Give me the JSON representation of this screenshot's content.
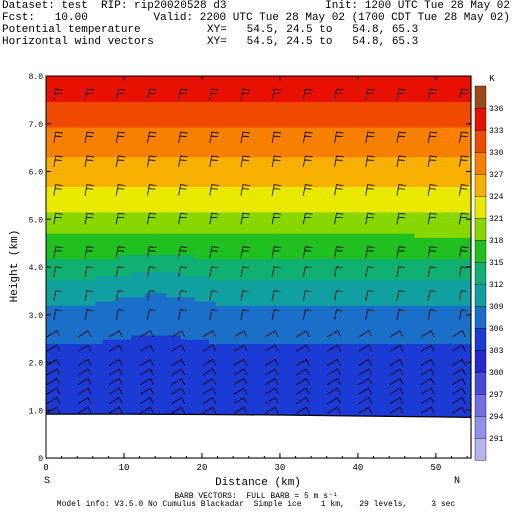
{
  "header": {
    "dataset": "Dataset: test  RIP: rip20020528 d3",
    "init": "Init: 1200 UTC Tue 28 May 02",
    "fcst": "Fcst:   10.00",
    "valid": "Valid: 2200 UTC Tue 28 May 02 (1700 CDT Tue 28 May 02)",
    "field1": "Potential temperature",
    "xy1": "XY=   54.5, 24.5 to   54.8, 65.3",
    "field2": "Horizontal wind vectors",
    "xy2": "XY=   54.5, 24.5 to   54.8, 65.3"
  },
  "footer": {
    "line1": "BARB VECTORS:  FULL BARB = 5 m s⁻¹",
    "line2": "Model info: V3.5.0 No Cumulus Blackadar  Simple ice    1 km,   29 levels,     3 sec"
  },
  "colors": {
    "ground": "#ffffff",
    "frame": "#000000",
    "barb": "#000000"
  },
  "chart_data": {
    "type": "heatmap",
    "title": "",
    "xlabel": "Distance (km)",
    "ylabel": "Height (km)",
    "xlim": [
      0,
      54.5
    ],
    "ylim": [
      0,
      8.0
    ],
    "x_ticks": [
      "0",
      "10",
      "20",
      "30",
      "40",
      "50"
    ],
    "x_tick_values": [
      0,
      10,
      20,
      30,
      40,
      50
    ],
    "y_ticks": [
      "0",
      "1.0",
      "2.0",
      "3.0",
      "4.0",
      "5.0",
      "6.0",
      "7.0",
      "8.0"
    ],
    "y_tick_values": [
      0,
      1,
      2,
      3,
      4,
      5,
      6,
      7,
      8
    ],
    "x_end_labels": {
      "left": "S",
      "right": "N"
    },
    "colorbar": {
      "unit": "K",
      "levels": [
        291,
        294,
        297,
        300,
        303,
        306,
        309,
        312,
        315,
        318,
        321,
        324,
        327,
        330,
        333,
        336
      ],
      "colors": [
        "#b4b4f0",
        "#9090ec",
        "#7070e4",
        "#4a4ad8",
        "#2828d0",
        "#1c3ad4",
        "#1a70c8",
        "#10a0a0",
        "#10b070",
        "#20c020",
        "#88d800",
        "#e8e800",
        "#f8b000",
        "#f88000",
        "#f04a00",
        "#e81000",
        "#9a4a18"
      ]
    },
    "ground_height": [
      [
        0,
        0.92
      ],
      [
        10,
        0.92
      ],
      [
        20,
        0.91
      ],
      [
        30,
        0.9
      ],
      [
        40,
        0.88
      ],
      [
        50,
        0.86
      ],
      [
        54.5,
        0.85
      ]
    ],
    "theta_profile": [
      [
        0.9,
        303
      ],
      [
        1.5,
        304
      ],
      [
        2.0,
        305
      ],
      [
        2.4,
        306
      ],
      [
        2.8,
        307.5
      ],
      [
        3.2,
        309
      ],
      [
        3.6,
        311
      ],
      [
        4.0,
        314
      ],
      [
        4.5,
        317
      ],
      [
        5.0,
        320
      ],
      [
        5.5,
        323
      ],
      [
        6.0,
        325.5
      ],
      [
        6.5,
        328
      ],
      [
        7.0,
        330.5
      ],
      [
        7.5,
        333
      ],
      [
        8.0,
        335
      ]
    ],
    "barbs": {
      "x_values": [
        1,
        5,
        9,
        13,
        17,
        21,
        25,
        29,
        33,
        37,
        41,
        45,
        49,
        53
      ],
      "z_values": [
        1.0,
        1.2,
        1.4,
        1.6,
        1.8,
        2.0,
        2.3,
        2.6,
        3.0,
        3.4,
        3.9,
        4.3,
        5.0,
        5.6,
        6.2,
        6.7,
        7.6
      ]
    }
  }
}
